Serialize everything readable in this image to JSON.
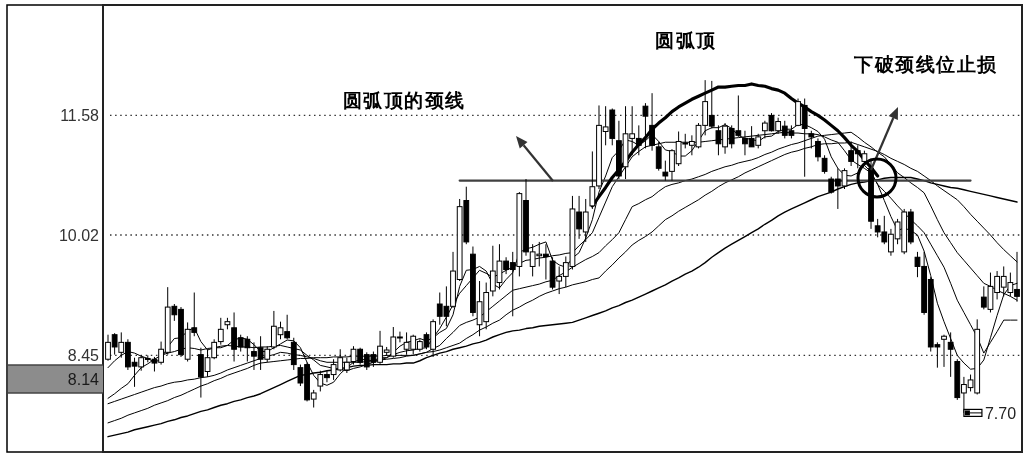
{
  "chart_data": {
    "type": "candlestick",
    "categories": [
      null,
      null,
      null,
      null,
      null,
      null,
      null,
      null,
      null,
      null,
      null,
      null,
      null,
      null,
      null,
      null,
      null,
      null,
      null,
      null,
      null,
      null,
      null,
      null,
      null,
      null,
      null,
      null,
      null,
      null,
      null,
      null,
      null,
      null,
      null,
      null,
      null,
      null,
      null,
      null,
      null,
      null,
      null,
      null,
      null,
      null,
      null,
      null,
      null,
      null,
      null,
      null,
      null,
      null,
      null,
      null,
      null,
      null,
      null,
      null,
      null,
      null,
      null,
      null,
      null,
      null,
      null,
      null,
      null,
      null,
      null,
      null,
      null,
      null,
      null,
      null,
      null,
      null,
      null,
      null,
      null,
      null,
      null,
      null,
      null,
      null,
      null,
      null,
      null,
      null,
      null,
      null,
      null,
      null,
      null,
      null,
      null,
      null,
      null,
      null,
      null,
      null,
      null,
      null,
      null,
      null,
      null,
      null,
      null,
      null,
      null,
      null,
      null,
      null,
      null,
      null,
      null,
      null,
      null,
      null,
      null,
      null,
      null,
      null,
      null,
      null,
      null,
      null,
      null,
      null,
      null,
      null,
      null,
      null,
      null,
      null,
      null,
      null
    ],
    "ohlc": [
      [
        8.4,
        8.72,
        8.38,
        8.62
      ],
      [
        8.72,
        8.74,
        8.46,
        8.56
      ],
      [
        8.49,
        8.75,
        8.42,
        8.62
      ],
      [
        8.62,
        8.66,
        8.26,
        8.3
      ],
      [
        8.36,
        8.42,
        8.04,
        8.31
      ],
      [
        8.3,
        8.45,
        8.25,
        8.42
      ],
      [
        8.4,
        8.45,
        8.36,
        8.41
      ],
      [
        8.4,
        8.43,
        8.24,
        8.35
      ],
      [
        8.36,
        8.63,
        8.33,
        8.53
      ],
      [
        8.49,
        9.34,
        8.46,
        9.08
      ],
      [
        9.09,
        9.12,
        8.9,
        8.98
      ],
      [
        9.05,
        9.08,
        8.43,
        8.46
      ],
      [
        8.4,
        8.88,
        8.37,
        8.79
      ],
      [
        8.81,
        9.27,
        8.7,
        8.75
      ],
      [
        8.46,
        8.55,
        7.9,
        8.17
      ],
      [
        8.24,
        8.53,
        8.17,
        8.42
      ],
      [
        8.42,
        8.66,
        8.4,
        8.62
      ],
      [
        8.63,
        8.94,
        8.59,
        8.79
      ],
      [
        8.85,
        8.94,
        8.79,
        8.89
      ],
      [
        8.81,
        9.01,
        8.37,
        8.53
      ],
      [
        8.68,
        8.72,
        8.5,
        8.56
      ],
      [
        8.66,
        8.7,
        8.37,
        8.55
      ],
      [
        8.5,
        8.62,
        8.26,
        8.44
      ],
      [
        8.55,
        8.7,
        8.26,
        8.4
      ],
      [
        8.4,
        8.57,
        8.36,
        8.53
      ],
      [
        8.56,
        9.03,
        8.53,
        8.83
      ],
      [
        8.72,
        8.89,
        8.66,
        8.81
      ],
      [
        8.76,
        8.98,
        8.66,
        8.68
      ],
      [
        8.62,
        8.68,
        8.26,
        8.33
      ],
      [
        8.29,
        8.33,
        8.05,
        8.09
      ],
      [
        8.33,
        8.36,
        7.85,
        7.87
      ],
      [
        7.88,
        8.0,
        7.77,
        7.96
      ],
      [
        8.05,
        8.25,
        7.98,
        8.2
      ],
      [
        8.2,
        8.25,
        8.1,
        8.16
      ],
      [
        8.2,
        8.4,
        8.13,
        8.33
      ],
      [
        8.26,
        8.53,
        8.24,
        8.42
      ],
      [
        8.26,
        8.42,
        8.22,
        8.36
      ],
      [
        8.37,
        8.57,
        8.33,
        8.53
      ],
      [
        8.53,
        8.55,
        8.33,
        8.36
      ],
      [
        8.46,
        8.49,
        8.26,
        8.3
      ],
      [
        8.46,
        8.5,
        8.3,
        8.36
      ],
      [
        8.36,
        8.77,
        8.34,
        8.57
      ],
      [
        8.49,
        8.56,
        8.45,
        8.52
      ],
      [
        8.44,
        8.82,
        8.42,
        8.69
      ],
      [
        8.68,
        8.76,
        8.62,
        8.69
      ],
      [
        8.53,
        8.75,
        8.46,
        8.62
      ],
      [
        8.53,
        8.72,
        8.46,
        8.7
      ],
      [
        8.53,
        8.66,
        8.5,
        8.63
      ],
      [
        8.72,
        8.75,
        8.53,
        8.56
      ],
      [
        8.53,
        8.92,
        8.43,
        8.89
      ],
      [
        9.12,
        9.27,
        8.85,
        8.96
      ],
      [
        9.09,
        9.35,
        8.83,
        8.96
      ],
      [
        9.09,
        9.8,
        9.07,
        9.55
      ],
      [
        9.44,
        10.49,
        9.42,
        10.39
      ],
      [
        10.47,
        10.65,
        9.9,
        9.93
      ],
      [
        9.77,
        9.87,
        8.96,
        9.01
      ],
      [
        8.85,
        9.42,
        8.7,
        9.15
      ],
      [
        8.89,
        9.4,
        8.79,
        9.27
      ],
      [
        9.29,
        9.88,
        9.22,
        9.55
      ],
      [
        9.4,
        9.9,
        9.31,
        9.68
      ],
      [
        9.68,
        9.73,
        9.51,
        9.57
      ],
      [
        9.66,
        9.8,
        8.96,
        9.57
      ],
      [
        9.61,
        10.58,
        9.48,
        10.56
      ],
      [
        10.47,
        10.75,
        9.75,
        9.8
      ],
      [
        9.61,
        9.9,
        9.48,
        9.8
      ],
      [
        9.75,
        9.93,
        9.61,
        9.77
      ],
      [
        9.77,
        9.9,
        9.44,
        9.74
      ],
      [
        9.68,
        9.73,
        9.31,
        9.34
      ],
      [
        9.42,
        9.61,
        9.25,
        9.48
      ],
      [
        9.48,
        9.74,
        9.34,
        9.66
      ],
      [
        9.61,
        10.53,
        9.57,
        10.36
      ],
      [
        10.32,
        10.53,
        9.97,
        10.1
      ],
      [
        10.06,
        10.49,
        9.93,
        10.32
      ],
      [
        10.4,
        11.11,
        10.36,
        10.65
      ],
      [
        10.66,
        11.71,
        10.62,
        11.45
      ],
      [
        11.37,
        11.7,
        11.19,
        11.43
      ],
      [
        11.65,
        11.67,
        11.19,
        11.28
      ],
      [
        11.25,
        11.51,
        10.75,
        10.79
      ],
      [
        10.91,
        11.7,
        10.75,
        11.34
      ],
      [
        11.28,
        11.7,
        11.06,
        11.34
      ],
      [
        11.28,
        11.45,
        11.06,
        11.19
      ],
      [
        11.7,
        11.74,
        11.15,
        11.57
      ],
      [
        11.45,
        11.87,
        11.12,
        11.19
      ],
      [
        11.17,
        11.24,
        10.86,
        10.89
      ],
      [
        10.84,
        10.99,
        10.73,
        10.79
      ],
      [
        10.85,
        11.14,
        10.73,
        11.12
      ],
      [
        10.95,
        11.37,
        10.92,
        11.24
      ],
      [
        11.21,
        11.34,
        11.15,
        11.22
      ],
      [
        11.19,
        11.32,
        11.06,
        11.24
      ],
      [
        11.17,
        11.48,
        11.15,
        11.45
      ],
      [
        11.45,
        12.04,
        11.32,
        11.76
      ],
      [
        11.58,
        12.03,
        11.41,
        11.44
      ],
      [
        11.38,
        11.45,
        11.06,
        11.21
      ],
      [
        11.17,
        11.48,
        11.08,
        11.44
      ],
      [
        11.41,
        11.45,
        11.15,
        11.21
      ],
      [
        11.38,
        11.84,
        11.3,
        11.32
      ],
      [
        11.28,
        11.38,
        11.06,
        11.21
      ],
      [
        11.28,
        11.44,
        11.17,
        11.17
      ],
      [
        11.19,
        11.34,
        11.15,
        11.3
      ],
      [
        11.38,
        11.51,
        11.28,
        11.48
      ],
      [
        11.58,
        11.61,
        11.37,
        11.38
      ],
      [
        11.38,
        11.55,
        11.34,
        11.5
      ],
      [
        11.44,
        11.51,
        11.28,
        11.32
      ],
      [
        11.38,
        11.45,
        11.28,
        11.32
      ],
      [
        11.45,
        11.8,
        11.44,
        11.76
      ],
      [
        11.71,
        11.8,
        10.78,
        11.41
      ],
      [
        11.34,
        11.38,
        11.15,
        11.3
      ],
      [
        11.24,
        11.28,
        10.98,
        11.04
      ],
      [
        11.02,
        11.06,
        10.82,
        10.85
      ],
      [
        10.75,
        10.78,
        10.56,
        10.58
      ],
      [
        10.75,
        10.89,
        10.36,
        10.66
      ],
      [
        10.66,
        10.89,
        10.62,
        10.86
      ],
      [
        11.12,
        11.24,
        10.92,
        10.98
      ],
      [
        11.12,
        11.19,
        10.89,
        11.08
      ],
      [
        10.98,
        11.12,
        10.95,
        11.08
      ],
      [
        10.89,
        11.02,
        10.1,
        10.2
      ],
      [
        10.14,
        10.23,
        9.99,
        10.06
      ],
      [
        10.06,
        10.27,
        9.9,
        9.93
      ],
      [
        9.8,
        10.1,
        9.75,
        10.03
      ],
      [
        9.97,
        10.23,
        9.9,
        10.19
      ],
      [
        9.8,
        10.36,
        9.77,
        10.32
      ],
      [
        10.32,
        10.36,
        9.9,
        9.93
      ],
      [
        9.73,
        9.8,
        9.47,
        9.61
      ],
      [
        9.61,
        9.8,
        8.98,
        9.01
      ],
      [
        9.44,
        9.47,
        8.5,
        8.56
      ],
      [
        8.59,
        8.62,
        8.29,
        8.56
      ],
      [
        8.66,
        8.72,
        8.3,
        8.7
      ],
      [
        8.62,
        8.75,
        8.17,
        8.53
      ],
      [
        8.37,
        8.4,
        7.87,
        7.9
      ],
      [
        7.96,
        8.17,
        7.7,
        8.07
      ],
      [
        8.03,
        8.2,
        7.98,
        8.13
      ],
      [
        7.96,
        8.92,
        7.94,
        8.79
      ],
      [
        9.21,
        9.35,
        9.05,
        9.08
      ],
      [
        9.05,
        9.53,
        9.01,
        9.35
      ],
      [
        9.27,
        9.55,
        9.18,
        9.48
      ],
      [
        9.34,
        9.61,
        9.22,
        9.48
      ],
      [
        9.27,
        9.53,
        9.22,
        9.4
      ],
      [
        9.31,
        9.8,
        9.15,
        9.22
      ]
    ],
    "series": [
      {
        "type": "line",
        "color": "#000000",
        "values": [
          8.29,
          8.38,
          8.45,
          8.5,
          8.48,
          8.44,
          8.41,
          8.36,
          8.4,
          8.56,
          8.67,
          8.68,
          8.77,
          8.81,
          8.63,
          8.52,
          8.55,
          8.55,
          8.58,
          8.65,
          8.68,
          8.66,
          8.59,
          8.5,
          8.5,
          8.55,
          8.6,
          8.65,
          8.64,
          8.55,
          8.36,
          8.19,
          8.09,
          8.06,
          8.1,
          8.21,
          8.29,
          8.36,
          8.4,
          8.39,
          8.38,
          8.42,
          8.42,
          8.49,
          8.57,
          8.62,
          8.64,
          8.67,
          8.64,
          8.68,
          8.75,
          8.8,
          8.98,
          9.35,
          9.56,
          9.57,
          9.61,
          9.55,
          9.38,
          9.33,
          9.44,
          9.53,
          9.79,
          9.84,
          9.86,
          9.9,
          9.93,
          9.69,
          9.63,
          9.6,
          9.72,
          9.79,
          9.98,
          10.22,
          10.58,
          10.79,
          11.03,
          11.12,
          11.26,
          11.24,
          11.19,
          11.25,
          11.33,
          11.24,
          11.13,
          11.11,
          11.05,
          11.05,
          11.12,
          11.25,
          11.38,
          11.42,
          11.42,
          11.46,
          11.41,
          11.32,
          11.28,
          11.27,
          11.24,
          11.3,
          11.31,
          11.37,
          11.4,
          11.4,
          11.46,
          11.46,
          11.42,
          11.37,
          11.27,
          11.04,
          10.89,
          10.8,
          10.79,
          10.83,
          10.93,
          10.84,
          10.68,
          10.47,
          10.26,
          10.08,
          10.11,
          10.08,
          10.02,
          9.81,
          9.49,
          9.13,
          8.89,
          8.67,
          8.45,
          8.35,
          8.27,
          8.28,
          8.39,
          8.68,
          8.97,
          9.24,
          9.36,
          9.39
        ]
      },
      {
        "type": "line",
        "color": "#000000",
        "values": [
          7.89,
          7.95,
          8.02,
          8.08,
          8.19,
          8.29,
          8.34,
          8.4,
          8.45,
          8.48,
          8.5,
          8.53,
          8.55,
          8.54,
          8.52,
          8.54,
          8.55,
          8.57,
          8.58,
          8.57,
          8.56,
          8.56,
          8.55,
          8.56,
          8.56,
          8.57,
          8.58,
          8.56,
          8.54,
          8.52,
          8.45,
          8.39,
          8.32,
          8.3,
          8.28,
          8.27,
          8.25,
          8.28,
          8.3,
          8.33,
          8.36,
          8.39,
          8.42,
          8.46,
          8.49,
          8.51,
          8.52,
          8.54,
          8.55,
          8.68,
          8.8,
          8.95,
          9.11,
          9.26,
          9.36,
          9.46,
          9.56,
          9.52,
          9.47,
          9.51,
          9.56,
          9.6,
          9.65,
          9.69,
          9.7,
          9.72,
          9.73,
          9.75,
          9.76,
          9.78,
          9.79,
          9.88,
          9.96,
          10.05,
          10.25,
          10.45,
          10.65,
          10.78,
          10.91,
          11.04,
          11.11,
          11.17,
          11.19,
          11.21,
          11.23,
          11.23,
          11.23,
          11.23,
          11.23,
          11.23,
          11.24,
          11.25,
          11.26,
          11.27,
          11.28,
          11.29,
          11.3,
          11.31,
          11.32,
          11.33,
          11.34,
          11.35,
          11.36,
          11.35,
          11.35,
          11.34,
          11.34,
          11.33,
          11.3,
          11.26,
          11.23,
          11.12,
          11.0,
          10.94,
          10.89,
          10.83,
          10.68,
          10.59,
          10.5,
          10.4,
          10.31,
          10.22,
          10.14,
          10.05,
          9.9,
          9.75,
          9.6,
          9.39,
          9.17,
          9.01,
          8.85,
          8.69,
          8.48,
          8.62,
          8.76,
          8.91,
          8.91,
          8.91
        ]
      },
      {
        "type": "line",
        "color": "#000000",
        "values": [
          7.82,
          7.85,
          7.88,
          7.91,
          7.94,
          7.97,
          8.0,
          8.03,
          8.05,
          8.08,
          8.1,
          8.11,
          8.13,
          8.14,
          8.16,
          8.17,
          8.19,
          8.22,
          8.26,
          8.29,
          8.32,
          8.35,
          8.38,
          8.41,
          8.44,
          8.46,
          8.49,
          8.48,
          8.46,
          8.45,
          8.43,
          8.41,
          8.38,
          8.36,
          8.36,
          8.36,
          8.36,
          8.36,
          8.36,
          8.37,
          8.38,
          8.39,
          8.4,
          8.41,
          8.42,
          8.44,
          8.45,
          8.47,
          8.49,
          8.54,
          8.58,
          8.67,
          8.75,
          8.84,
          8.88,
          8.91,
          8.95,
          9.02,
          9.09,
          9.16,
          9.23,
          9.3,
          9.32,
          9.34,
          9.36,
          9.38,
          9.41,
          9.43,
          9.49,
          9.54,
          9.6,
          9.65,
          9.7,
          9.74,
          9.79,
          9.88,
          9.96,
          10.05,
          10.22,
          10.39,
          10.43,
          10.48,
          10.52,
          10.59,
          10.65,
          10.68,
          10.7,
          10.73,
          10.75,
          10.78,
          10.81,
          10.85,
          10.88,
          10.91,
          10.93,
          10.96,
          10.98,
          11.0,
          11.03,
          11.07,
          11.1,
          11.14,
          11.17,
          11.2,
          11.22,
          11.25,
          11.28,
          11.31,
          11.32,
          11.33,
          11.34,
          11.35,
          11.36,
          11.3,
          11.23,
          11.17,
          11.1,
          11.04,
          10.94,
          10.83,
          10.77,
          10.7,
          10.64,
          10.57,
          10.4,
          10.22,
          10.05,
          9.92,
          9.79,
          9.69,
          9.59,
          9.49,
          9.39,
          9.35,
          9.3,
          9.26,
          9.22,
          9.17
        ]
      },
      {
        "type": "line",
        "color": "#000000",
        "values": [
          7.57,
          7.6,
          7.63,
          7.67,
          7.7,
          7.73,
          7.76,
          7.8,
          7.83,
          7.86,
          7.9,
          7.93,
          7.97,
          8.01,
          8.05,
          8.08,
          8.12,
          8.15,
          8.19,
          8.22,
          8.25,
          8.28,
          8.32,
          8.35,
          8.36,
          8.37,
          8.38,
          8.39,
          8.4,
          8.41,
          8.41,
          8.42,
          8.42,
          8.42,
          8.43,
          8.43,
          8.43,
          8.44,
          8.44,
          8.44,
          8.44,
          8.44,
          8.45,
          8.45,
          8.45,
          8.45,
          8.45,
          8.47,
          8.49,
          8.5,
          8.52,
          8.55,
          8.58,
          8.61,
          8.67,
          8.72,
          8.78,
          8.82,
          8.87,
          8.91,
          8.98,
          9.04,
          9.08,
          9.13,
          9.17,
          9.22,
          9.26,
          9.29,
          9.32,
          9.34,
          9.37,
          9.39,
          9.41,
          9.44,
          9.46,
          9.55,
          9.63,
          9.72,
          9.8,
          9.89,
          9.95,
          10.0,
          10.06,
          10.14,
          10.22,
          10.27,
          10.33,
          10.38,
          10.43,
          10.48,
          10.54,
          10.59,
          10.65,
          10.7,
          10.74,
          10.78,
          10.83,
          10.87,
          10.91,
          10.95,
          10.99,
          11.03,
          11.07,
          11.1,
          11.12,
          11.15,
          11.17,
          11.2,
          11.21,
          11.21,
          11.22,
          11.22,
          11.23,
          11.2,
          11.17,
          11.14,
          11.11,
          11.07,
          11.02,
          10.98,
          10.94,
          10.89,
          10.85,
          10.79,
          10.73,
          10.66,
          10.6,
          10.54,
          10.48,
          10.39,
          10.29,
          10.2,
          10.11,
          10.02,
          9.92,
          9.83,
          9.75,
          9.67
        ]
      },
      {
        "type": "line",
        "color": "#000000",
        "values": [
          7.39,
          7.41,
          7.43,
          7.45,
          7.48,
          7.5,
          7.52,
          7.54,
          7.56,
          7.59,
          7.61,
          7.64,
          7.66,
          7.69,
          7.72,
          7.74,
          7.77,
          7.8,
          7.82,
          7.85,
          7.87,
          7.9,
          7.92,
          7.95,
          7.99,
          8.03,
          8.07,
          8.11,
          8.15,
          8.19,
          8.2,
          8.22,
          8.23,
          8.25,
          8.26,
          8.28,
          8.29,
          8.31,
          8.32,
          8.32,
          8.33,
          8.33,
          8.33,
          8.34,
          8.34,
          8.35,
          8.35,
          8.38,
          8.42,
          8.45,
          8.48,
          8.5,
          8.53,
          8.55,
          8.57,
          8.6,
          8.62,
          8.65,
          8.69,
          8.72,
          8.75,
          8.77,
          8.78,
          8.8,
          8.81,
          8.83,
          8.84,
          8.85,
          8.86,
          8.87,
          8.88,
          8.91,
          8.94,
          8.97,
          9.0,
          9.03,
          9.07,
          9.1,
          9.14,
          9.17,
          9.21,
          9.25,
          9.29,
          9.33,
          9.37,
          9.42,
          9.46,
          9.51,
          9.55,
          9.6,
          9.66,
          9.73,
          9.79,
          9.85,
          9.9,
          9.95,
          10.0,
          10.05,
          10.1,
          10.16,
          10.21,
          10.27,
          10.32,
          10.36,
          10.4,
          10.44,
          10.48,
          10.52,
          10.55,
          10.58,
          10.62,
          10.65,
          10.68,
          10.7,
          10.71,
          10.73,
          10.74,
          10.76,
          10.77,
          10.77,
          10.77,
          10.77,
          10.75,
          10.73,
          10.7,
          10.68,
          10.66,
          10.64,
          10.63,
          10.61,
          10.59,
          10.57,
          10.55,
          10.53,
          10.51,
          10.49,
          10.47,
          10.45
        ]
      },
      {
        "type": "line",
        "color": "#404040",
        "values": [
          null,
          null,
          null,
          null,
          null,
          null,
          null,
          null,
          null,
          null,
          null,
          null,
          null,
          null,
          null,
          null,
          null,
          null,
          null,
          null,
          null,
          null,
          null,
          null,
          null,
          null,
          null,
          null,
          null,
          null,
          null,
          null,
          null,
          null,
          null,
          null,
          null,
          null,
          null,
          null,
          null,
          null,
          null,
          null,
          null,
          null,
          null,
          null,
          null,
          null,
          null,
          null,
          null,
          10.73,
          10.73,
          10.73,
          10.73,
          10.73,
          10.73,
          10.73,
          10.73,
          10.73,
          10.73,
          10.73,
          10.73,
          10.73,
          10.73,
          10.73,
          10.73,
          10.73,
          10.73,
          10.73,
          10.73,
          10.73,
          10.73,
          10.73,
          10.73,
          10.73,
          10.73,
          10.73,
          10.73,
          10.73,
          10.73,
          10.73,
          10.73,
          10.73,
          10.73,
          10.73,
          10.73,
          10.73,
          10.73,
          10.73,
          10.73,
          10.73,
          10.73,
          10.73,
          10.73,
          10.73,
          10.73,
          10.73,
          10.73,
          10.73,
          10.73,
          10.73,
          10.73,
          10.73,
          10.73,
          10.73,
          10.73,
          10.73,
          10.73,
          10.73,
          10.73,
          10.73,
          10.73,
          10.73,
          10.73,
          10.73,
          10.73,
          10.73,
          10.73,
          10.73,
          10.73,
          10.73,
          10.73,
          10.73,
          10.73,
          10.73,
          10.73,
          10.73,
          10.73,
          null,
          null,
          null,
          null,
          null,
          null,
          null
        ]
      },
      {
        "type": "line",
        "color": "#000000",
        "values": [
          null,
          null,
          null,
          null,
          null,
          null,
          null,
          null,
          null,
          null,
          null,
          null,
          null,
          null,
          null,
          null,
          null,
          null,
          null,
          null,
          null,
          null,
          null,
          null,
          null,
          null,
          null,
          null,
          null,
          null,
          null,
          null,
          null,
          null,
          null,
          null,
          null,
          null,
          null,
          null,
          null,
          null,
          null,
          null,
          null,
          null,
          null,
          null,
          null,
          null,
          null,
          null,
          null,
          null,
          null,
          null,
          null,
          null,
          null,
          null,
          null,
          null,
          null,
          null,
          null,
          null,
          null,
          null,
          null,
          null,
          null,
          null,
          null,
          10.4,
          10.52,
          10.64,
          10.77,
          10.87,
          10.98,
          11.1,
          11.2,
          11.29,
          11.4,
          11.48,
          11.55,
          11.63,
          11.69,
          11.74,
          11.79,
          11.83,
          11.87,
          11.91,
          11.95,
          11.95,
          11.96,
          11.97,
          11.97,
          11.99,
          11.97,
          11.96,
          11.93,
          11.91,
          11.87,
          11.8,
          11.74,
          11.69,
          11.63,
          11.58,
          11.52,
          11.45,
          11.38,
          11.29,
          11.19,
          11.11,
          11.0,
          10.9,
          10.79,
          null,
          null,
          null,
          null,
          null,
          null,
          null,
          null,
          null,
          null,
          null,
          null,
          null,
          null,
          null,
          null,
          null,
          null,
          null,
          null,
          null
        ]
      }
    ],
    "ylim": [
      7.19,
      13.02
    ],
    "yticks": [
      8.45,
      10.02,
      11.58
    ],
    "grid": "y",
    "tick_labels": "y",
    "value_labels": [
      null,
      null,
      null,
      null,
      null,
      null,
      null,
      null,
      null,
      null,
      null,
      null,
      null,
      null,
      null,
      null,
      null,
      null,
      null,
      null,
      null,
      null,
      null,
      null,
      null,
      null,
      null,
      null,
      null,
      null,
      null,
      null,
      null,
      null,
      null,
      null,
      null,
      null,
      null,
      null,
      null,
      null,
      null,
      null,
      null,
      null,
      null,
      null,
      null,
      null,
      null,
      null,
      null,
      null,
      null,
      null,
      null,
      null,
      null,
      null,
      null,
      null,
      null,
      null,
      null,
      null,
      null,
      null,
      null,
      null,
      null,
      null,
      null,
      null,
      null,
      null,
      null,
      null,
      null,
      null,
      null,
      null,
      null,
      null,
      null,
      null,
      null,
      null,
      null,
      null,
      null,
      null,
      null,
      null,
      null,
      null,
      null,
      null,
      null,
      null,
      null,
      null,
      null,
      null,
      null,
      null,
      null,
      null,
      null,
      null,
      null,
      null,
      null,
      null,
      null,
      null,
      null,
      null,
      null,
      null,
      null,
      null,
      null,
      null,
      null,
      null,
      null,
      null,
      null,
      "7.70",
      null,
      null,
      null,
      null,
      null,
      null,
      null,
      null
    ],
    "annotations": [
      "圆弧顶的颈线",
      "圆弧顶",
      "下破颈线位止损",
      "8.14"
    ]
  }
}
